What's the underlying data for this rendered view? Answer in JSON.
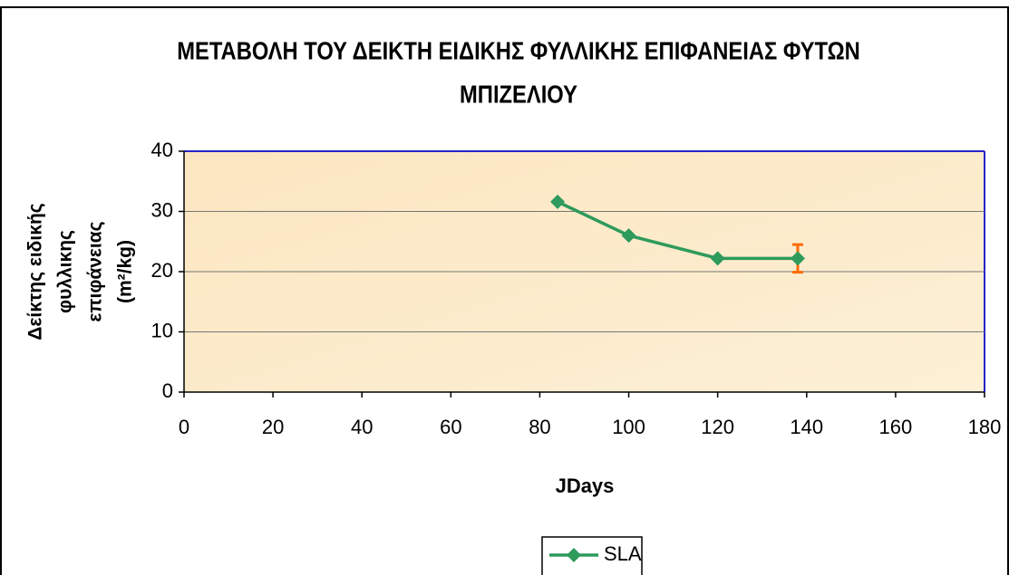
{
  "chart_data": {
    "type": "line",
    "title": [
      "ΜΕΤΑΒΟΛΗ ΤΟΥ ΔΕΙΚΤΗ ΕΙΔΙΚΗΣ ΦΥΛΛΙΚΗΣ ΕΠΙΦΑΝΕΙΑΣ ΦΥΤΩΝ",
      "ΜΠΙΖΕΛΙΟΥ"
    ],
    "x_label": "JDays",
    "y_label": [
      "Δείκτης ειδικής",
      "φυλλικης",
      "επιφάνειας",
      "(m²/kg)"
    ],
    "x": [
      84,
      100,
      120,
      138
    ],
    "series": [
      {
        "name": "SLA",
        "color": "#2e9a5c",
        "values": [
          31.6,
          26,
          22.2,
          22.2
        ],
        "errors": [
          null,
          null,
          null,
          2.3
        ],
        "error_color": "#ff6a00"
      }
    ],
    "xlim": [
      0,
      180
    ],
    "xticks": [
      0,
      20,
      40,
      60,
      80,
      100,
      120,
      140,
      160,
      180
    ],
    "ylim": [
      0,
      40
    ],
    "yticks": [
      0,
      10,
      20,
      30,
      40
    ],
    "grid": true,
    "legend": "bottom"
  }
}
